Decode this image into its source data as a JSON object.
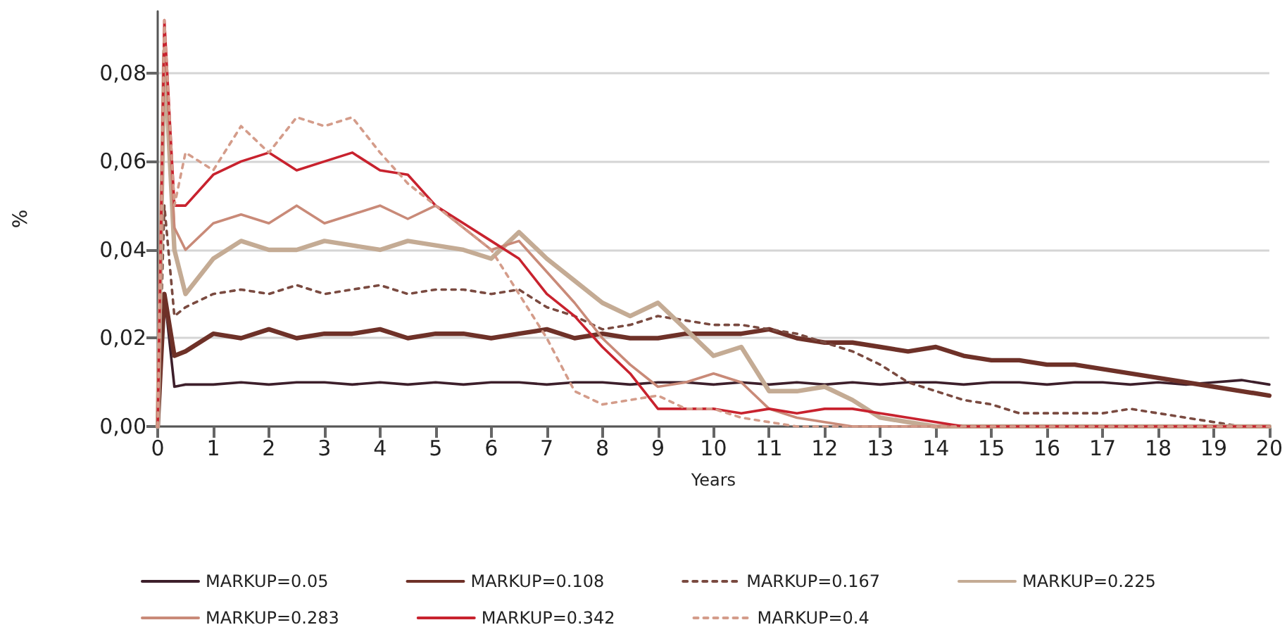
{
  "chart_data": {
    "type": "line",
    "xlabel": "Years",
    "ylabel": "%",
    "x": [
      0,
      0.12,
      0.3,
      0.5,
      1,
      1.5,
      2,
      2.5,
      3,
      3.5,
      4,
      4.5,
      5,
      5.5,
      6,
      6.5,
      7,
      7.5,
      8,
      8.5,
      9,
      9.5,
      10,
      10.5,
      11,
      11.5,
      12,
      12.5,
      13,
      13.5,
      14,
      14.5,
      15,
      15.5,
      16,
      16.5,
      17,
      17.5,
      18,
      18.5,
      19,
      19.5,
      20
    ],
    "xlim": [
      0,
      20
    ],
    "xticks": [
      0,
      1,
      2,
      3,
      4,
      5,
      6,
      7,
      8,
      9,
      10,
      11,
      12,
      13,
      14,
      15,
      16,
      17,
      18,
      19,
      20
    ],
    "ylim": [
      0,
      0.094
    ],
    "yticks": [
      {
        "value": 0,
        "label": "0,00"
      },
      {
        "value": 0.02,
        "label": "0,02"
      },
      {
        "value": 0.04,
        "label": "0,04"
      },
      {
        "value": 0.06,
        "label": "0,06"
      },
      {
        "value": 0.08,
        "label": "0,08"
      }
    ],
    "grid": "y",
    "legend": "bottom",
    "marker": "none",
    "series": [
      {
        "name": "MARKUP=0.05",
        "color": "#3d1f2b",
        "line_style": "solid",
        "values": [
          0,
          0.03,
          0.009,
          0.0095,
          0.0095,
          0.01,
          0.0095,
          0.01,
          0.01,
          0.0095,
          0.01,
          0.0095,
          0.01,
          0.0095,
          0.01,
          0.01,
          0.0095,
          0.01,
          0.01,
          0.0095,
          0.01,
          0.01,
          0.0095,
          0.01,
          0.0095,
          0.01,
          0.0095,
          0.01,
          0.0095,
          0.01,
          0.01,
          0.0095,
          0.01,
          0.01,
          0.0095,
          0.01,
          0.01,
          0.0095,
          0.01,
          0.0095,
          0.01,
          0.0105,
          0.0095
        ]
      },
      {
        "name": "MARKUP=0.108",
        "color": "#6e3128",
        "line_style": "solid",
        "values": [
          0,
          0.03,
          0.016,
          0.017,
          0.021,
          0.02,
          0.022,
          0.02,
          0.021,
          0.021,
          0.022,
          0.02,
          0.021,
          0.021,
          0.02,
          0.021,
          0.022,
          0.02,
          0.021,
          0.02,
          0.02,
          0.021,
          0.021,
          0.021,
          0.022,
          0.02,
          0.019,
          0.019,
          0.018,
          0.017,
          0.018,
          0.016,
          0.015,
          0.015,
          0.014,
          0.014,
          0.013,
          0.012,
          0.011,
          0.01,
          0.009,
          0.008,
          0.007
        ]
      },
      {
        "name": "MARKUP=0.167",
        "color": "#7a4a40",
        "line_style": "dotted",
        "values": [
          0,
          0.05,
          0.025,
          0.027,
          0.03,
          0.031,
          0.03,
          0.032,
          0.03,
          0.031,
          0.032,
          0.03,
          0.031,
          0.031,
          0.03,
          0.031,
          0.027,
          0.025,
          0.022,
          0.023,
          0.025,
          0.024,
          0.023,
          0.023,
          0.022,
          0.021,
          0.019,
          0.017,
          0.014,
          0.01,
          0.008,
          0.006,
          0.005,
          0.003,
          0.003,
          0.003,
          0.003,
          0.004,
          0.003,
          0.002,
          0.001,
          0,
          0
        ]
      },
      {
        "name": "MARKUP=0.225",
        "color": "#c4ab94",
        "line_style": "solid",
        "values": [
          0,
          0.085,
          0.04,
          0.03,
          0.038,
          0.042,
          0.04,
          0.04,
          0.042,
          0.041,
          0.04,
          0.042,
          0.041,
          0.04,
          0.038,
          0.044,
          0.038,
          0.033,
          0.028,
          0.025,
          0.028,
          0.022,
          0.016,
          0.018,
          0.008,
          0.008,
          0.009,
          0.006,
          0.002,
          0.001,
          0,
          0,
          0,
          0,
          0,
          0,
          0,
          0,
          0,
          0,
          0,
          0,
          0
        ]
      },
      {
        "name": "MARKUP=0.283",
        "color": "#c98a78",
        "line_style": "solid",
        "values": [
          0,
          0.09,
          0.045,
          0.04,
          0.046,
          0.048,
          0.046,
          0.05,
          0.046,
          0.048,
          0.05,
          0.047,
          0.05,
          0.045,
          0.04,
          0.042,
          0.035,
          0.028,
          0.02,
          0.014,
          0.009,
          0.01,
          0.012,
          0.01,
          0.004,
          0.002,
          0.001,
          0,
          0,
          0,
          0,
          0,
          0,
          0,
          0,
          0,
          0,
          0,
          0,
          0,
          0,
          0,
          0
        ]
      },
      {
        "name": "MARKUP=0.342",
        "color": "#c8222e",
        "line_style": "solid",
        "values": [
          0,
          0.092,
          0.05,
          0.05,
          0.057,
          0.06,
          0.062,
          0.058,
          0.06,
          0.062,
          0.058,
          0.057,
          0.05,
          0.046,
          0.042,
          0.038,
          0.03,
          0.025,
          0.018,
          0.012,
          0.004,
          0.004,
          0.004,
          0.003,
          0.004,
          0.003,
          0.004,
          0.004,
          0.003,
          0.002,
          0.001,
          0,
          0,
          0,
          0,
          0,
          0,
          0,
          0,
          0,
          0,
          0,
          0
        ]
      },
      {
        "name": "MARKUP=0.4",
        "color": "#d49c8a",
        "line_style": "dotted",
        "values": [
          0,
          0.092,
          0.05,
          0.062,
          0.058,
          0.068,
          0.062,
          0.07,
          0.068,
          0.07,
          0.062,
          0.055,
          0.05,
          0.045,
          0.04,
          0.03,
          0.02,
          0.008,
          0.005,
          0.006,
          0.007,
          0.004,
          0.004,
          0.002,
          0.001,
          0,
          0,
          0,
          0,
          0,
          0,
          0,
          0,
          0,
          0,
          0,
          0,
          0,
          0,
          0,
          0,
          0,
          0
        ]
      }
    ]
  }
}
